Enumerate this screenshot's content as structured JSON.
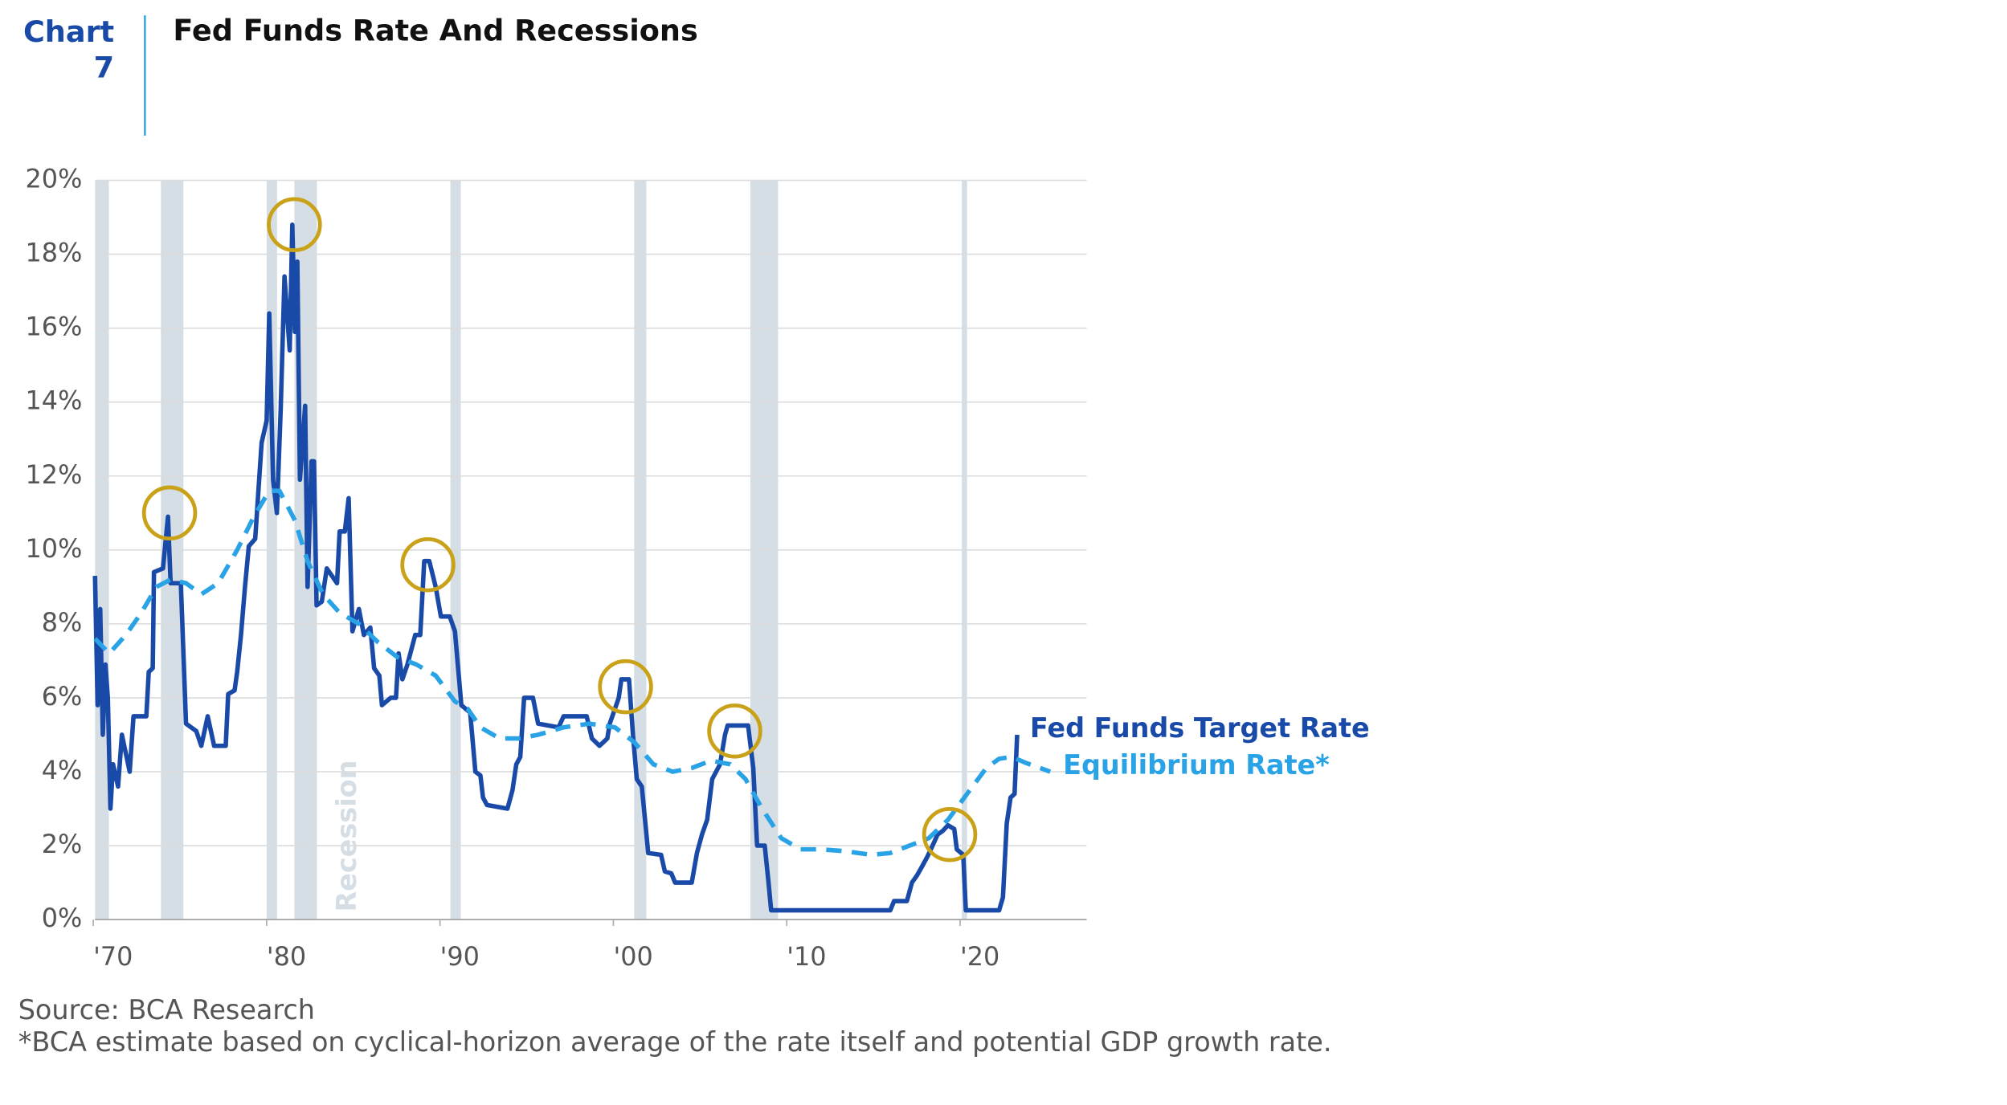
{
  "chart_label": "Chart",
  "chart_number": "7",
  "chart_data": {
    "type": "line",
    "title": "Fed Funds Rate And Recessions",
    "xlim": [
      1970.1,
      2027.3
    ],
    "ylim": [
      0,
      20
    ],
    "xticks": [
      {
        "value": 1970,
        "label": "'70"
      },
      {
        "value": 1980,
        "label": "'80"
      },
      {
        "value": 1990,
        "label": "'90"
      },
      {
        "value": 2000,
        "label": "'00"
      },
      {
        "value": 2010,
        "label": "'10"
      },
      {
        "value": 2020,
        "label": "'20"
      }
    ],
    "yticks": [
      {
        "value": 0,
        "label": "0%"
      },
      {
        "value": 2,
        "label": "2%"
      },
      {
        "value": 4,
        "label": "4%"
      },
      {
        "value": 6,
        "label": "6%"
      },
      {
        "value": 8,
        "label": "8%"
      },
      {
        "value": 10,
        "label": "10%"
      },
      {
        "value": 12,
        "label": "12%"
      },
      {
        "value": 14,
        "label": "14%"
      },
      {
        "value": 16,
        "label": "16%"
      },
      {
        "value": 18,
        "label": "18%"
      },
      {
        "value": 20,
        "label": "20%"
      }
    ],
    "grid": true,
    "recession_label": "Recession",
    "recession_color": "#d5dde5",
    "recessions": [
      [
        1970.1,
        1970.9
      ],
      [
        1973.9,
        1975.2
      ],
      [
        1980.0,
        1980.6
      ],
      [
        1981.6,
        1982.9
      ],
      [
        1990.6,
        1991.2
      ],
      [
        2001.2,
        2001.9
      ],
      [
        2007.9,
        2009.5
      ],
      [
        2020.1,
        2020.4
      ]
    ],
    "highlight_color": "#c9a219",
    "highlights": [
      {
        "x": 1974.4,
        "y": 11.0
      },
      {
        "x": 1981.6,
        "y": 18.8
      },
      {
        "x": 1989.3,
        "y": 9.6
      },
      {
        "x": 2000.7,
        "y": 6.3
      },
      {
        "x": 2007.0,
        "y": 5.1
      },
      {
        "x": 2019.4,
        "y": 2.3
      }
    ],
    "series": [
      {
        "name": "Fed Funds Target Rate",
        "color": "#1a4aa8",
        "dashed": false,
        "x": [
          1970.1,
          1970.25,
          1970.4,
          1970.55,
          1970.7,
          1970.84,
          1970.99,
          1971.14,
          1971.43,
          1971.65,
          1972.1,
          1972.32,
          1973.06,
          1973.2,
          1973.43,
          1973.5,
          1974.02,
          1974.31,
          1974.46,
          1975.05,
          1975.35,
          1975.94,
          1976.23,
          1976.6,
          1976.97,
          1977.64,
          1977.78,
          1978.15,
          1978.3,
          1978.52,
          1978.75,
          1978.97,
          1979.34,
          1979.71,
          1980.0,
          1980.15,
          1980.37,
          1980.59,
          1980.81,
          1981.03,
          1981.33,
          1981.48,
          1981.63,
          1981.77,
          1981.92,
          1982.22,
          1982.36,
          1982.59,
          1982.73,
          1982.88,
          1983.18,
          1983.47,
          1984.06,
          1984.21,
          1984.51,
          1984.73,
          1984.95,
          1985.32,
          1985.61,
          1985.98,
          1986.2,
          1986.5,
          1986.65,
          1987.16,
          1987.46,
          1987.61,
          1987.83,
          1988.12,
          1988.57,
          1988.86,
          1989.09,
          1989.38,
          1989.75,
          1990.05,
          1990.56,
          1990.86,
          1991.23,
          1991.74,
          1992.04,
          1992.33,
          1992.48,
          1992.71,
          1993.89,
          1994.18,
          1994.4,
          1994.63,
          1994.85,
          1995.36,
          1995.66,
          1996.84,
          1997.13,
          1998.46,
          1998.76,
          1999.2,
          1999.65,
          1999.79,
          2000.09,
          2000.31,
          2000.46,
          2000.9,
          2001.13,
          2001.35,
          2001.64,
          2002.01,
          2002.75,
          2002.97,
          2003.34,
          2003.56,
          2004.52,
          2004.82,
          2005.11,
          2005.41,
          2005.7,
          2006.15,
          2006.44,
          2006.59,
          2007.77,
          2008.07,
          2008.29,
          2008.73,
          2008.95,
          2009.1,
          2015.97,
          2016.19,
          2016.93,
          2017.22,
          2017.52,
          2017.82,
          2018.11,
          2018.41,
          2018.7,
          2019.0,
          2019.3,
          2019.66,
          2019.81,
          2020.18,
          2020.33,
          2022.25,
          2022.47,
          2022.69,
          2022.91,
          2023.14,
          2023.29
        ],
        "values": [
          9.3,
          5.8,
          8.4,
          5.0,
          6.9,
          6.0,
          3.0,
          4.2,
          3.6,
          5.0,
          4.0,
          5.5,
          5.5,
          6.7,
          6.8,
          9.4,
          9.5,
          10.9,
          9.1,
          9.1,
          5.3,
          5.1,
          4.7,
          5.5,
          4.7,
          4.7,
          6.1,
          6.2,
          6.7,
          7.7,
          9.0,
          10.1,
          10.3,
          12.9,
          13.5,
          16.4,
          11.9,
          11.0,
          13.8,
          17.4,
          15.4,
          18.8,
          15.9,
          17.8,
          11.9,
          13.9,
          9.0,
          12.4,
          12.4,
          8.5,
          8.6,
          9.5,
          9.1,
          10.5,
          10.5,
          11.4,
          7.8,
          8.4,
          7.7,
          7.9,
          6.8,
          6.6,
          5.8,
          6.0,
          6.0,
          7.2,
          6.5,
          6.9,
          7.7,
          7.7,
          9.7,
          9.7,
          9.0,
          8.2,
          8.2,
          7.8,
          5.8,
          5.6,
          4.0,
          3.9,
          3.3,
          3.1,
          3.0,
          3.5,
          4.2,
          4.4,
          6.0,
          6.0,
          5.3,
          5.2,
          5.5,
          5.5,
          4.9,
          4.7,
          4.9,
          5.3,
          5.7,
          6.0,
          6.5,
          6.5,
          5.0,
          3.8,
          3.6,
          1.8,
          1.75,
          1.3,
          1.25,
          1.0,
          1.0,
          1.8,
          2.3,
          2.7,
          3.8,
          4.2,
          5.0,
          5.25,
          5.25,
          4.1,
          2.0,
          2.0,
          1.0,
          0.25,
          0.25,
          0.5,
          0.5,
          1.0,
          1.2,
          1.45,
          1.7,
          2.0,
          2.3,
          2.4,
          2.55,
          2.45,
          1.9,
          1.75,
          0.25,
          0.25,
          0.6,
          2.6,
          3.3,
          3.4,
          5.0
        ]
      },
      {
        "name": "Equilibrium Rate*",
        "color": "#29a3e6",
        "dashed": true,
        "x": [
          1970.1,
          1970.92,
          1971.88,
          1972.77,
          1973.65,
          1974.46,
          1975.35,
          1976.23,
          1977.2,
          1978.3,
          1979.26,
          1980.15,
          1980.74,
          1981.63,
          1982.36,
          1983.25,
          1984.21,
          1985.32,
          1986.43,
          1987.54,
          1988.64,
          1989.75,
          1990.86,
          1991.6,
          1992.33,
          1993.44,
          1994.55,
          1995.66,
          1997.13,
          1998.61,
          2000.09,
          2001.2,
          2002.31,
          2003.42,
          2004.52,
          2005.63,
          2006.74,
          2007.62,
          2008.58,
          2009.69,
          2010.8,
          2011.91,
          2013.38,
          2014.86,
          2015.97,
          2017.08,
          2018.19,
          2019.3,
          2020.4,
          2021.51,
          2022.25,
          2022.99,
          2023.73,
          2025.2
        ],
        "values": [
          7.6,
          7.2,
          7.7,
          8.3,
          9.0,
          9.2,
          9.1,
          8.8,
          9.1,
          10.0,
          10.9,
          11.6,
          11.6,
          10.8,
          9.7,
          8.8,
          8.3,
          8.0,
          7.5,
          7.1,
          6.9,
          6.6,
          5.9,
          5.7,
          5.2,
          4.9,
          4.9,
          5.0,
          5.2,
          5.3,
          5.2,
          4.8,
          4.2,
          4.0,
          4.1,
          4.3,
          4.2,
          3.8,
          3.0,
          2.2,
          1.9,
          1.9,
          1.85,
          1.75,
          1.8,
          2.0,
          2.2,
          2.7,
          3.4,
          4.1,
          4.35,
          4.4,
          4.25,
          4.0
        ]
      }
    ]
  },
  "footer": {
    "source": "Source: BCA Research",
    "note": "*BCA estimate based on cyclical-horizon average of the rate itself and potential GDP growth rate."
  }
}
